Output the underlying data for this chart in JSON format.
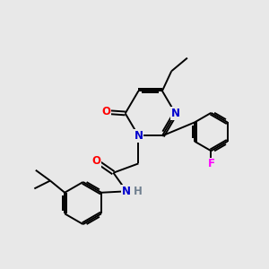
{
  "background_color": "#e8e8e8",
  "bond_color": "#000000",
  "atom_colors": {
    "N": "#0000cd",
    "O": "#ff0000",
    "F": "#ff00ff",
    "H": "#708090",
    "C": "#000000"
  },
  "figsize": [
    3.0,
    3.0
  ],
  "dpi": 100
}
